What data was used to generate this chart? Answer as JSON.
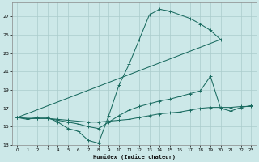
{
  "xlabel": "Humidex (Indice chaleur)",
  "bg_color": "#cce8e8",
  "grid_color": "#aacccc",
  "line_color": "#1a6b60",
  "xlim": [
    -0.5,
    23.5
  ],
  "ylim": [
    13,
    28.5
  ],
  "xticks": [
    0,
    1,
    2,
    3,
    4,
    5,
    6,
    7,
    8,
    9,
    10,
    11,
    12,
    13,
    14,
    15,
    16,
    17,
    18,
    19,
    20,
    21,
    22,
    23
  ],
  "yticks": [
    13,
    15,
    17,
    19,
    21,
    23,
    25,
    27
  ],
  "curve1_x": [
    0,
    1,
    2,
    3,
    4,
    5,
    6,
    7,
    8,
    9,
    10,
    11,
    12,
    13,
    14,
    15,
    16,
    17,
    18,
    19,
    20
  ],
  "curve1_y": [
    16,
    15.8,
    16,
    16,
    15.5,
    14.8,
    14.5,
    13.5,
    13.2,
    16.2,
    19.5,
    21.8,
    24.5,
    27.2,
    27.8,
    27.6,
    27.2,
    26.8,
    26.2,
    25.5,
    24.5
  ],
  "curve2_x": [
    0,
    20
  ],
  "curve2_y": [
    16,
    24.5
  ],
  "curve3_x": [
    0,
    1,
    2,
    3,
    4,
    5,
    6,
    7,
    8,
    9,
    10,
    11,
    12,
    13,
    14,
    15,
    16,
    17,
    18,
    19,
    20,
    21,
    22,
    23
  ],
  "curve3_y": [
    16,
    15.9,
    15.9,
    15.9,
    15.8,
    15.7,
    15.6,
    15.5,
    15.5,
    15.6,
    15.7,
    15.8,
    16.0,
    16.2,
    16.4,
    16.5,
    16.6,
    16.8,
    17.0,
    17.1,
    17.1,
    17.1,
    17.2,
    17.2
  ],
  "curve4_x": [
    0,
    1,
    2,
    3,
    4,
    5,
    6,
    7,
    8,
    9,
    10,
    11,
    12,
    13,
    14,
    15,
    16,
    17,
    18,
    19,
    20,
    21,
    22,
    23
  ],
  "curve4_y": [
    16,
    15.9,
    15.9,
    15.9,
    15.7,
    15.5,
    15.3,
    15.0,
    14.8,
    15.5,
    16.2,
    16.8,
    17.2,
    17.5,
    17.8,
    18.0,
    18.3,
    18.6,
    18.9,
    20.5,
    17.0,
    16.7,
    17.1,
    17.3
  ]
}
